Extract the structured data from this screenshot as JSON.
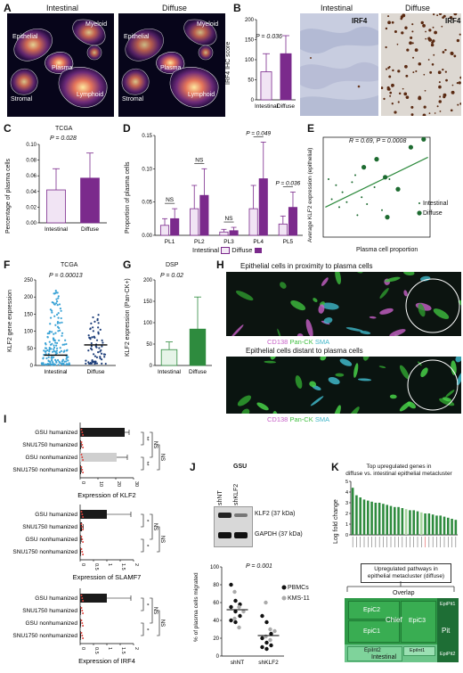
{
  "panel_letters": [
    "A",
    "B",
    "C",
    "D",
    "E",
    "F",
    "G",
    "H",
    "I",
    "J",
    "K"
  ],
  "panelA": {
    "left_title": "Intestinal",
    "right_title": "Diffuse",
    "regions_left": [
      "Myeloid",
      "Epithelial",
      "Plasma",
      "Stromal",
      "Lymphoid"
    ],
    "regions_right": [
      "Myeloid",
      "Epithelial",
      "Plasma",
      "Stromal",
      "Lymphoid"
    ]
  },
  "panelB": {
    "pvalue": "P = 0.036",
    "ylabel": "IRF4 IHC score",
    "micro_left_title": "Intestinal",
    "micro_right_title": "Diffuse",
    "micro_label": "IRF4"
  },
  "panelC": {
    "title": "TCGA",
    "pvalue": "P = 0.028",
    "ylabel": "Percentage of plasma cells"
  },
  "panelD": {
    "ylabel": "Proportion of plasma cells",
    "annotations": [
      "NS",
      "NS",
      "NS",
      "P = 0.049",
      "P = 0.036"
    ],
    "legend": [
      "Intestinal",
      "Diffuse"
    ]
  },
  "panelE": {
    "stat": "R = 0.69, P = 0.0008",
    "xlabel": "Plasma cell proportion",
    "ylabel": "Average KLF2 expression (epithelial)",
    "legend": [
      "Intestinal",
      "Diffuse"
    ]
  },
  "panelF": {
    "title": "TCGA",
    "pvalue": "P = 0.00013",
    "ylabel": "KLF2 gene expression"
  },
  "panelG": {
    "title": "DSP",
    "pvalue": "P = 0.02",
    "ylabel": "KLF2 expression (Pan-CK+)"
  },
  "panelH": {
    "top_title": "Epithelial cells in proximity to plasma cells",
    "bottom_title": "Epithelial cells distant to plasma cells",
    "stain_labels": [
      "CD138",
      "Pan-CK",
      "SMA"
    ]
  },
  "panelI": {
    "rows": [
      "GSU humanized",
      "SNU1750 humanized",
      "GSU nonhumanized",
      "SNU1750 nonhumanized"
    ],
    "xlabels": [
      "Expression of KLF2",
      "Expression of SLAMF7",
      "Expression of IRF4"
    ],
    "sig_top": [
      "**",
      "**",
      "NS",
      "NS"
    ],
    "sig_mid": [
      "*",
      "*",
      "NS",
      "NS"
    ],
    "sig_bot": [
      "*",
      "*",
      "NS",
      "NS"
    ]
  },
  "panelJ": {
    "title": "GSU",
    "lanes": [
      "shNT",
      "shKLF2"
    ],
    "bands": [
      "KLF2 (37 kDa)",
      "GAPDH (37 kDa)"
    ],
    "pvalue": "P = 0.001",
    "ylabel": "% of plasma cells migrated",
    "legend": [
      "PBMCs",
      "KMS-11"
    ]
  },
  "panelK": {
    "title_line1": "Top upregulated genes in",
    "title_line2": "diffuse vs. intestinal epithelial metacluster",
    "ylabel": "Log fold change",
    "box_line1": "Upregulated pathways in",
    "box_line2": "epithelial metacluster (diffuse)",
    "overlap": "Overlap",
    "treemap": [
      "EpiC2",
      "EpiC3",
      "EpiC1",
      "Chief",
      "EpiPit1",
      "EpiPit2",
      "Pit",
      "EpiInt2",
      "EpiInt1",
      "Intestinal"
    ]
  },
  "chart_data": [
    {
      "type": "bar",
      "panel": "B",
      "categories": [
        "Intestinal",
        "Diffuse"
      ],
      "values": [
        70,
        115
      ],
      "errors": [
        45,
        45
      ],
      "ylim": [
        0,
        200
      ],
      "yticks": [
        0,
        50,
        100,
        150,
        200
      ]
    },
    {
      "type": "bar",
      "panel": "C",
      "categories": [
        "Intestinal",
        "Diffuse"
      ],
      "values": [
        0.042,
        0.057
      ],
      "errors": [
        0.027,
        0.032
      ],
      "ylim": [
        0,
        0.1
      ],
      "yticks": [
        0.0,
        0.02,
        0.04,
        0.06,
        0.08,
        0.1
      ]
    },
    {
      "type": "bar",
      "panel": "D",
      "categories": [
        "PL1",
        "PL2",
        "PL3",
        "PL4",
        "PL5"
      ],
      "series": [
        {
          "name": "Intestinal",
          "values": [
            0.015,
            0.04,
            0.005,
            0.04,
            0.017
          ],
          "errors": [
            0.01,
            0.035,
            0.004,
            0.035,
            0.012
          ]
        },
        {
          "name": "Diffuse",
          "values": [
            0.025,
            0.06,
            0.007,
            0.085,
            0.042
          ],
          "errors": [
            0.015,
            0.04,
            0.005,
            0.055,
            0.023
          ]
        }
      ],
      "ylim": [
        0,
        0.15
      ],
      "yticks": [
        0.0,
        0.05,
        0.1,
        0.15
      ]
    },
    {
      "type": "scatter",
      "panel": "E",
      "series": [
        {
          "name": "Intestinal",
          "points": [
            [
              0.05,
              0.58
            ],
            [
              0.08,
              0.38
            ],
            [
              0.12,
              0.52
            ],
            [
              0.15,
              0.3
            ],
            [
              0.18,
              0.45
            ],
            [
              0.22,
              0.35
            ],
            [
              0.27,
              0.55
            ],
            [
              0.32,
              0.22
            ],
            [
              0.36,
              0.4
            ],
            [
              0.41,
              0.33
            ],
            [
              0.48,
              0.5
            ],
            [
              0.55,
              0.27
            ],
            [
              0.62,
              0.58
            ],
            [
              0.3,
              0.62
            ]
          ]
        },
        {
          "name": "Diffuse",
          "points": [
            [
              0.5,
              0.78
            ],
            [
              0.6,
              0.2
            ],
            [
              0.7,
              0.48
            ],
            [
              0.82,
              0.9
            ],
            [
              0.94,
              0.98
            ],
            [
              0.58,
              0.6
            ],
            [
              0.38,
              0.7
            ]
          ]
        }
      ],
      "fit": [
        [
          0.02,
          0.3
        ],
        [
          0.98,
          0.8
        ]
      ]
    },
    {
      "type": "scatter",
      "panel": "F",
      "categories": [
        "Intestinal",
        "Diffuse"
      ],
      "medians": [
        30,
        60
      ],
      "ylim": [
        0,
        250
      ],
      "yticks": [
        0,
        50,
        100,
        150,
        200,
        250
      ]
    },
    {
      "type": "bar",
      "panel": "G",
      "categories": [
        "Intestinal",
        "Diffuse"
      ],
      "values": [
        37,
        85
      ],
      "errors": [
        18,
        75
      ],
      "ylim": [
        0,
        200
      ],
      "yticks": [
        0,
        50,
        100,
        150,
        200
      ]
    },
    {
      "type": "bar",
      "panel": "I-KLF2",
      "categories": [
        "GSU humanized",
        "SNU1750 humanized",
        "GSU nonhumanized",
        "SNU1750 nonhumanized"
      ],
      "values": [
        25,
        0.5,
        20.5,
        0.5
      ],
      "errors": [
        2.5,
        0.3,
        6,
        0.3
      ],
      "xlim": [
        0,
        30
      ],
      "xticks": [
        0,
        10,
        20,
        30
      ]
    },
    {
      "type": "bar",
      "panel": "I-SLAMF7",
      "categories": [
        "GSU humanized",
        "SNU1750 humanized",
        "GSU nonhumanized",
        "SNU1750 nonhumanized"
      ],
      "values": [
        1.0,
        0.07,
        0.02,
        0.01
      ],
      "errors": [
        0.9,
        0.05,
        0.02,
        0.01
      ],
      "xlim": [
        0,
        2.0
      ],
      "xticks": [
        0,
        0.5,
        1.0,
        1.5,
        2.0
      ]
    },
    {
      "type": "bar",
      "panel": "I-IRF4",
      "categories": [
        "GSU humanized",
        "SNU1750 humanized",
        "GSU nonhumanized",
        "SNU1750 nonhumanized"
      ],
      "values": [
        1.0,
        0.01,
        0.01,
        0.01
      ],
      "errors": [
        0.9,
        0.01,
        0.01,
        0.01
      ],
      "xlim": [
        0,
        2.0
      ],
      "xticks": [
        0,
        0.5,
        1.0,
        1.5,
        2.0
      ]
    },
    {
      "type": "scatter",
      "panel": "J",
      "categories": [
        "shNT",
        "shKLF2"
      ],
      "series": [
        {
          "name": "PBMCs",
          "values": [
            [
              80,
              62,
              58,
              55,
              50,
              45,
              40,
              38
            ],
            [
              45,
              38,
              25,
              20,
              15,
              12,
              10,
              8
            ]
          ]
        },
        {
          "name": "KMS-11",
          "values": [
            [
              72,
              55,
              50,
              42,
              32
            ],
            [
              60,
              30,
              28,
              22,
              18
            ]
          ]
        }
      ],
      "medians": [
        52,
        23
      ],
      "ylim": [
        0,
        100
      ],
      "yticks": [
        0,
        20,
        40,
        60,
        80,
        100
      ]
    },
    {
      "type": "bar",
      "panel": "K",
      "values": [
        4.4,
        3.7,
        3.5,
        3.3,
        3.2,
        3.1,
        3.0,
        3.0,
        2.9,
        2.8,
        2.7,
        2.6,
        2.6,
        2.5,
        2.4,
        2.3,
        2.3,
        2.2,
        2.1,
        2.0,
        2.0,
        1.9,
        1.8,
        1.8,
        1.7,
        1.6,
        1.5,
        1.4
      ],
      "ylim": [
        0,
        5
      ],
      "yticks": [
        0,
        1,
        2,
        3,
        4,
        5
      ]
    }
  ]
}
